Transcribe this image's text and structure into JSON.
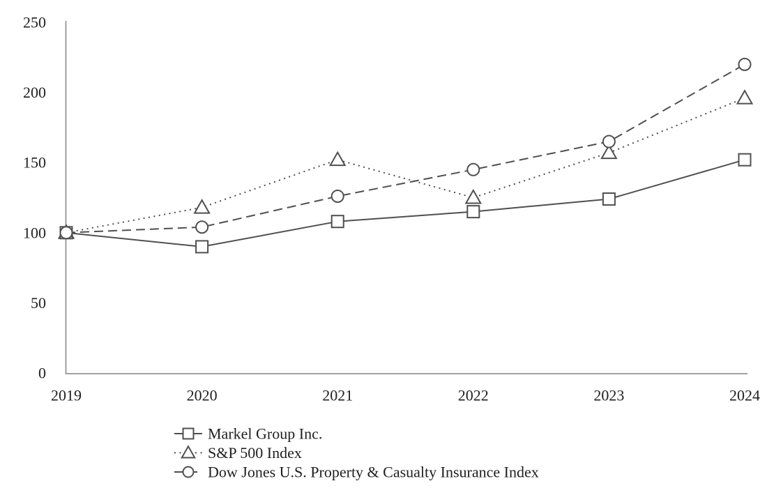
{
  "chart_data": {
    "type": "line",
    "title": "",
    "xlabel": "",
    "ylabel": "",
    "x": [
      "2019",
      "2020",
      "2021",
      "2022",
      "2023",
      "2024"
    ],
    "ylim": [
      0,
      250
    ],
    "yticks": [
      0,
      50,
      100,
      150,
      200,
      250
    ],
    "grid": false,
    "legend_position": "bottom-left",
    "series": [
      {
        "name": "Markel Group Inc.",
        "marker": "square",
        "line_style": "solid",
        "values": [
          100,
          90,
          108,
          115,
          124,
          152
        ]
      },
      {
        "name": "S&P 500 Index",
        "marker": "triangle",
        "line_style": "dotted",
        "values": [
          100,
          118,
          152,
          125,
          157,
          196
        ]
      },
      {
        "name": "Dow Jones U.S. Property & Casualty Insurance Index",
        "marker": "circle",
        "line_style": "dashed",
        "values": [
          100,
          104,
          126,
          145,
          165,
          220
        ]
      }
    ]
  },
  "colors": {
    "line": "#4f4f4f",
    "marker_fill": "#ffffff",
    "axis": "#949494",
    "text": "#1f1f1f",
    "background": "#ffffff"
  }
}
